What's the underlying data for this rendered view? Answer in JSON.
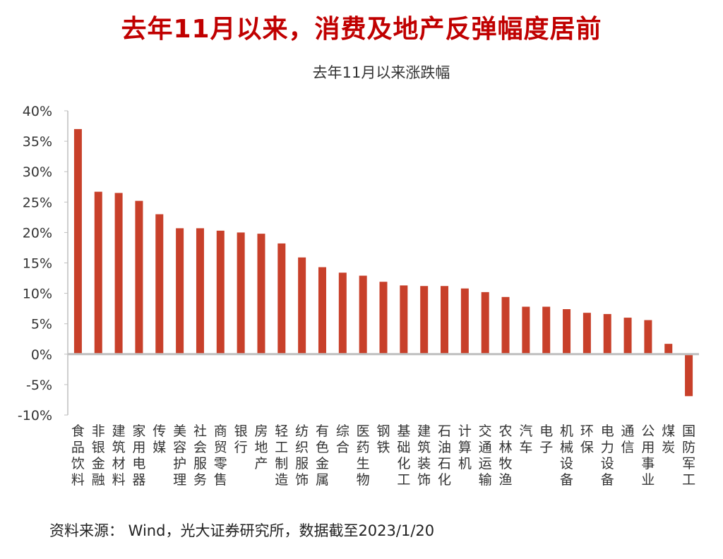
{
  "headline": "去年11月以来，消费及地产反弹幅度居前",
  "source": "资料来源： Wind，光大证券研究所，数据截至2023/1/20",
  "colors": {
    "headline": "#c00000",
    "bar": "#c8402a",
    "axis": "#bfbfbf"
  },
  "chart_data": {
    "type": "bar",
    "title": "去年11月以来涨跌幅",
    "xlabel": "",
    "ylabel": "",
    "ylim": [
      -0.1,
      0.4
    ],
    "yticks": [
      "40%",
      "35%",
      "30%",
      "25%",
      "20%",
      "15%",
      "10%",
      "5%",
      "0%",
      "-5%",
      "-10%"
    ],
    "grid": false,
    "categories": [
      "食品饮料",
      "非银金融",
      "建筑材料",
      "家用电器",
      "传媒",
      "美容护理",
      "社会服务",
      "商贸零售",
      "银行",
      "房地产",
      "轻工制造",
      "纺织服饰",
      "有色金属",
      "综合",
      "医药生物",
      "钢铁",
      "基础化工",
      "建筑装饰",
      "石油石化",
      "计算机",
      "交通运输",
      "农林牧渔",
      "汽车",
      "电子",
      "机械设备",
      "环保",
      "电力设备",
      "通信",
      "公用事业",
      "煤炭",
      "国防军工"
    ],
    "values": [
      0.37,
      0.267,
      0.265,
      0.252,
      0.23,
      0.207,
      0.207,
      0.203,
      0.2,
      0.198,
      0.182,
      0.159,
      0.143,
      0.134,
      0.129,
      0.119,
      0.113,
      0.112,
      0.112,
      0.108,
      0.102,
      0.094,
      0.078,
      0.078,
      0.074,
      0.068,
      0.066,
      0.06,
      0.056,
      0.017,
      -0.069
    ]
  }
}
